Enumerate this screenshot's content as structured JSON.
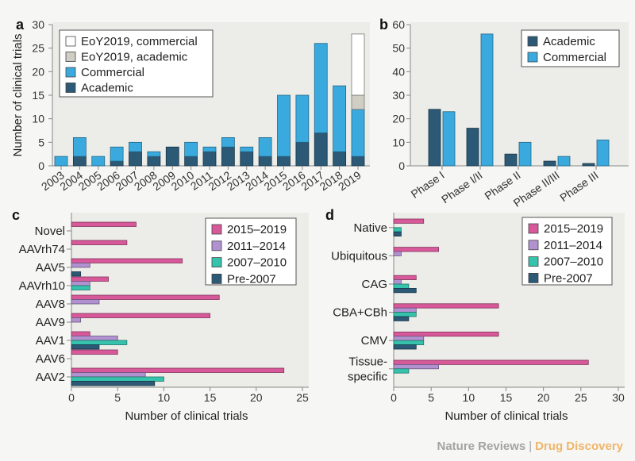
{
  "colors": {
    "academic": "#2c5976",
    "commercial": "#3aaade",
    "eoy_academic": "#cfcdc4",
    "eoy_commercial": "#ffffff",
    "p2015_2019": "#d8599a",
    "p2011_2014": "#b191cf",
    "p2007_2010": "#35c3ad",
    "pre2007": "#2c5976",
    "plot_bg": "#ececE8",
    "footer_journal": "#a3a3a3",
    "footer_title": "#f0b569"
  },
  "footer": {
    "journal": "Nature Reviews",
    "separator": "|",
    "title": "Drug Discovery"
  },
  "chart_data": [
    {
      "panel": "a",
      "type": "bar",
      "stacked": true,
      "ylabel": "Number of clinical trials",
      "ylim": [
        0,
        30
      ],
      "yticks": [
        "0",
        "5",
        "10",
        "15",
        "20",
        "25",
        "30"
      ],
      "legend_position": "top-left",
      "categories": [
        "2003",
        "2004",
        "2005",
        "2006",
        "2007",
        "2008",
        "2009",
        "2010",
        "2011",
        "2012",
        "2013",
        "2014",
        "2015",
        "2016",
        "2017",
        "2018",
        "2019"
      ],
      "series": [
        {
          "name": "Academic",
          "values": [
            0,
            2,
            0,
            1,
            3,
            2,
            4,
            2,
            3,
            4,
            3,
            2,
            2,
            5,
            7,
            3,
            2
          ]
        },
        {
          "name": "Commercial",
          "values": [
            2,
            4,
            2,
            3,
            2,
            1,
            0,
            3,
            1,
            2,
            1,
            4,
            13,
            10,
            19,
            14,
            10
          ]
        },
        {
          "name": "EoY2019, academic",
          "values": [
            0,
            0,
            0,
            0,
            0,
            0,
            0,
            0,
            0,
            0,
            0,
            0,
            0,
            0,
            0,
            0,
            3
          ]
        },
        {
          "name": "EoY2019, commercial",
          "values": [
            0,
            0,
            0,
            0,
            0,
            0,
            0,
            0,
            0,
            0,
            0,
            0,
            0,
            0,
            0,
            0,
            13
          ]
        }
      ],
      "legend_order": [
        "EoY2019, commercial",
        "EoY2019, academic",
        "Commercial",
        "Academic"
      ]
    },
    {
      "panel": "b",
      "type": "bar",
      "ylim": [
        0,
        60
      ],
      "yticks": [
        "0",
        "10",
        "20",
        "30",
        "40",
        "50",
        "60"
      ],
      "legend_position": "top-right",
      "categories": [
        "Phase I",
        "Phase I/II",
        "Phase II",
        "Phase II/III",
        "Phase III"
      ],
      "series": [
        {
          "name": "Academic",
          "values": [
            24,
            16,
            5,
            2,
            1
          ]
        },
        {
          "name": "Commercial",
          "values": [
            23,
            56,
            10,
            4,
            11
          ]
        }
      ]
    },
    {
      "panel": "c",
      "type": "bar",
      "orientation": "horizontal",
      "xlabel": "Number of clinical trials",
      "xlim": [
        0,
        25
      ],
      "xticks": [
        "0",
        "5",
        "10",
        "15",
        "20",
        "25"
      ],
      "legend_position": "top-right",
      "categories": [
        "Novel",
        "AAVrh74",
        "AAV5",
        "AAVrh10",
        "AAV8",
        "AAV9",
        "AAV1",
        "AAV6",
        "AAV2"
      ],
      "series": [
        {
          "name": "2015–2019",
          "values": [
            7,
            6,
            12,
            4,
            16,
            15,
            2,
            5,
            23
          ]
        },
        {
          "name": "2011–2014",
          "values": [
            0,
            0,
            2,
            2,
            3,
            1,
            5,
            0,
            8
          ]
        },
        {
          "name": "2007–2010",
          "values": [
            0,
            0,
            0,
            2,
            0,
            0,
            6,
            0,
            10
          ]
        },
        {
          "name": "Pre-2007",
          "values": [
            0,
            0,
            1,
            0,
            0,
            0,
            3,
            0,
            9
          ]
        }
      ]
    },
    {
      "panel": "d",
      "type": "bar",
      "orientation": "horizontal",
      "xlabel": "Number of clinical trials",
      "xlim": [
        0,
        30
      ],
      "xticks": [
        "0",
        "5",
        "10",
        "15",
        "20",
        "25",
        "30"
      ],
      "legend_position": "top-right",
      "categories": [
        "Native",
        "Ubiquitous",
        "CAG",
        "CBA+CBh",
        "CMV",
        "Tissue-\nspecific"
      ],
      "category_lines": [
        [
          "Native"
        ],
        [
          "Ubiquitous"
        ],
        [
          "CAG"
        ],
        [
          "CBA+CBh"
        ],
        [
          "CMV"
        ],
        [
          "Tissue-",
          "specific"
        ]
      ],
      "series": [
        {
          "name": "2015–2019",
          "values": [
            4,
            6,
            3,
            14,
            14,
            26
          ]
        },
        {
          "name": "2011–2014",
          "values": [
            0,
            1,
            1,
            3,
            4,
            6
          ]
        },
        {
          "name": "2007–2010",
          "values": [
            1,
            0,
            2,
            3,
            4,
            2
          ]
        },
        {
          "name": "Pre-2007",
          "values": [
            1,
            0,
            3,
            2,
            3,
            0
          ]
        }
      ]
    }
  ]
}
